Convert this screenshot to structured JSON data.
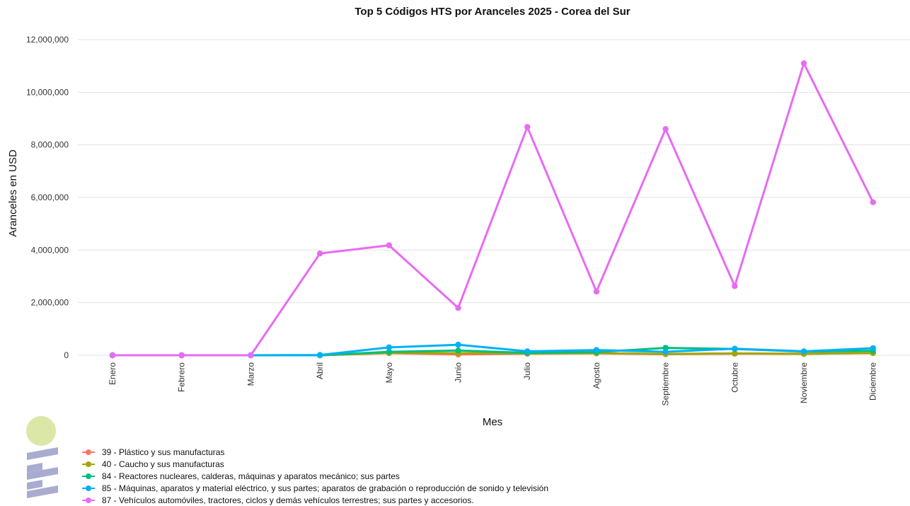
{
  "chart_data": {
    "type": "line",
    "title": "Top 5 Códigos HTS por Aranceles 2025 - Corea del Sur",
    "xlabel": "Mes",
    "ylabel": "Aranceles en USD",
    "categories": [
      "Enero",
      "Febrero",
      "Marzo",
      "Abril",
      "Mayo",
      "Junio",
      "Julio",
      "Agosto",
      "Septiembre",
      "Octubre",
      "Noviembre",
      "Diciembre"
    ],
    "ylim": [
      0,
      12000000
    ],
    "yticks": [
      0,
      2000000,
      4000000,
      6000000,
      8000000,
      10000000,
      12000000
    ],
    "ytick_labels": [
      "0",
      "2,000,000",
      "4,000,000",
      "6,000,000",
      "8,000,000",
      "10,000,000",
      "12,000,000"
    ],
    "grid": true,
    "legend_position": "bottom-left",
    "series": [
      {
        "name": "39 - Plástico y sus manufacturas",
        "color": "#F8766D",
        "values": [
          0,
          0,
          0,
          0,
          80000,
          30000,
          60000,
          70000,
          40000,
          60000,
          60000,
          80000
        ]
      },
      {
        "name": "40 - Caucho y sus manufacturas",
        "color": "#A3A500",
        "values": [
          0,
          0,
          0,
          0,
          90000,
          80000,
          70000,
          80000,
          50000,
          70000,
          50000,
          90000
        ]
      },
      {
        "name": "84 - Reactores nucleares, calderas, máquinas y aparatos mecánico; sus partes",
        "color": "#00BF7D",
        "values": [
          0,
          0,
          0,
          0,
          130000,
          180000,
          90000,
          120000,
          280000,
          240000,
          140000,
          170000
        ]
      },
      {
        "name": "85 - Máquinas, aparatos y material eléctrico, y sus partes; aparatos de grabación o reproducción de sonido y televisión",
        "color": "#00B0F6",
        "values": [
          0,
          0,
          0,
          10000,
          300000,
          400000,
          150000,
          200000,
          130000,
          250000,
          150000,
          270000
        ]
      },
      {
        "name": "87 - Vehículos automóviles, tractores, ciclos y demás vehículos terrestres; sus partes y accesorios.",
        "color": "#E76BF3",
        "values": [
          0,
          0,
          0,
          3870000,
          4180000,
          1800000,
          8680000,
          2420000,
          8600000,
          2630000,
          11100000,
          5820000
        ]
      }
    ]
  },
  "logo": {
    "circle_color": "#dbe7a6",
    "bars_color": "#a9acd0"
  }
}
